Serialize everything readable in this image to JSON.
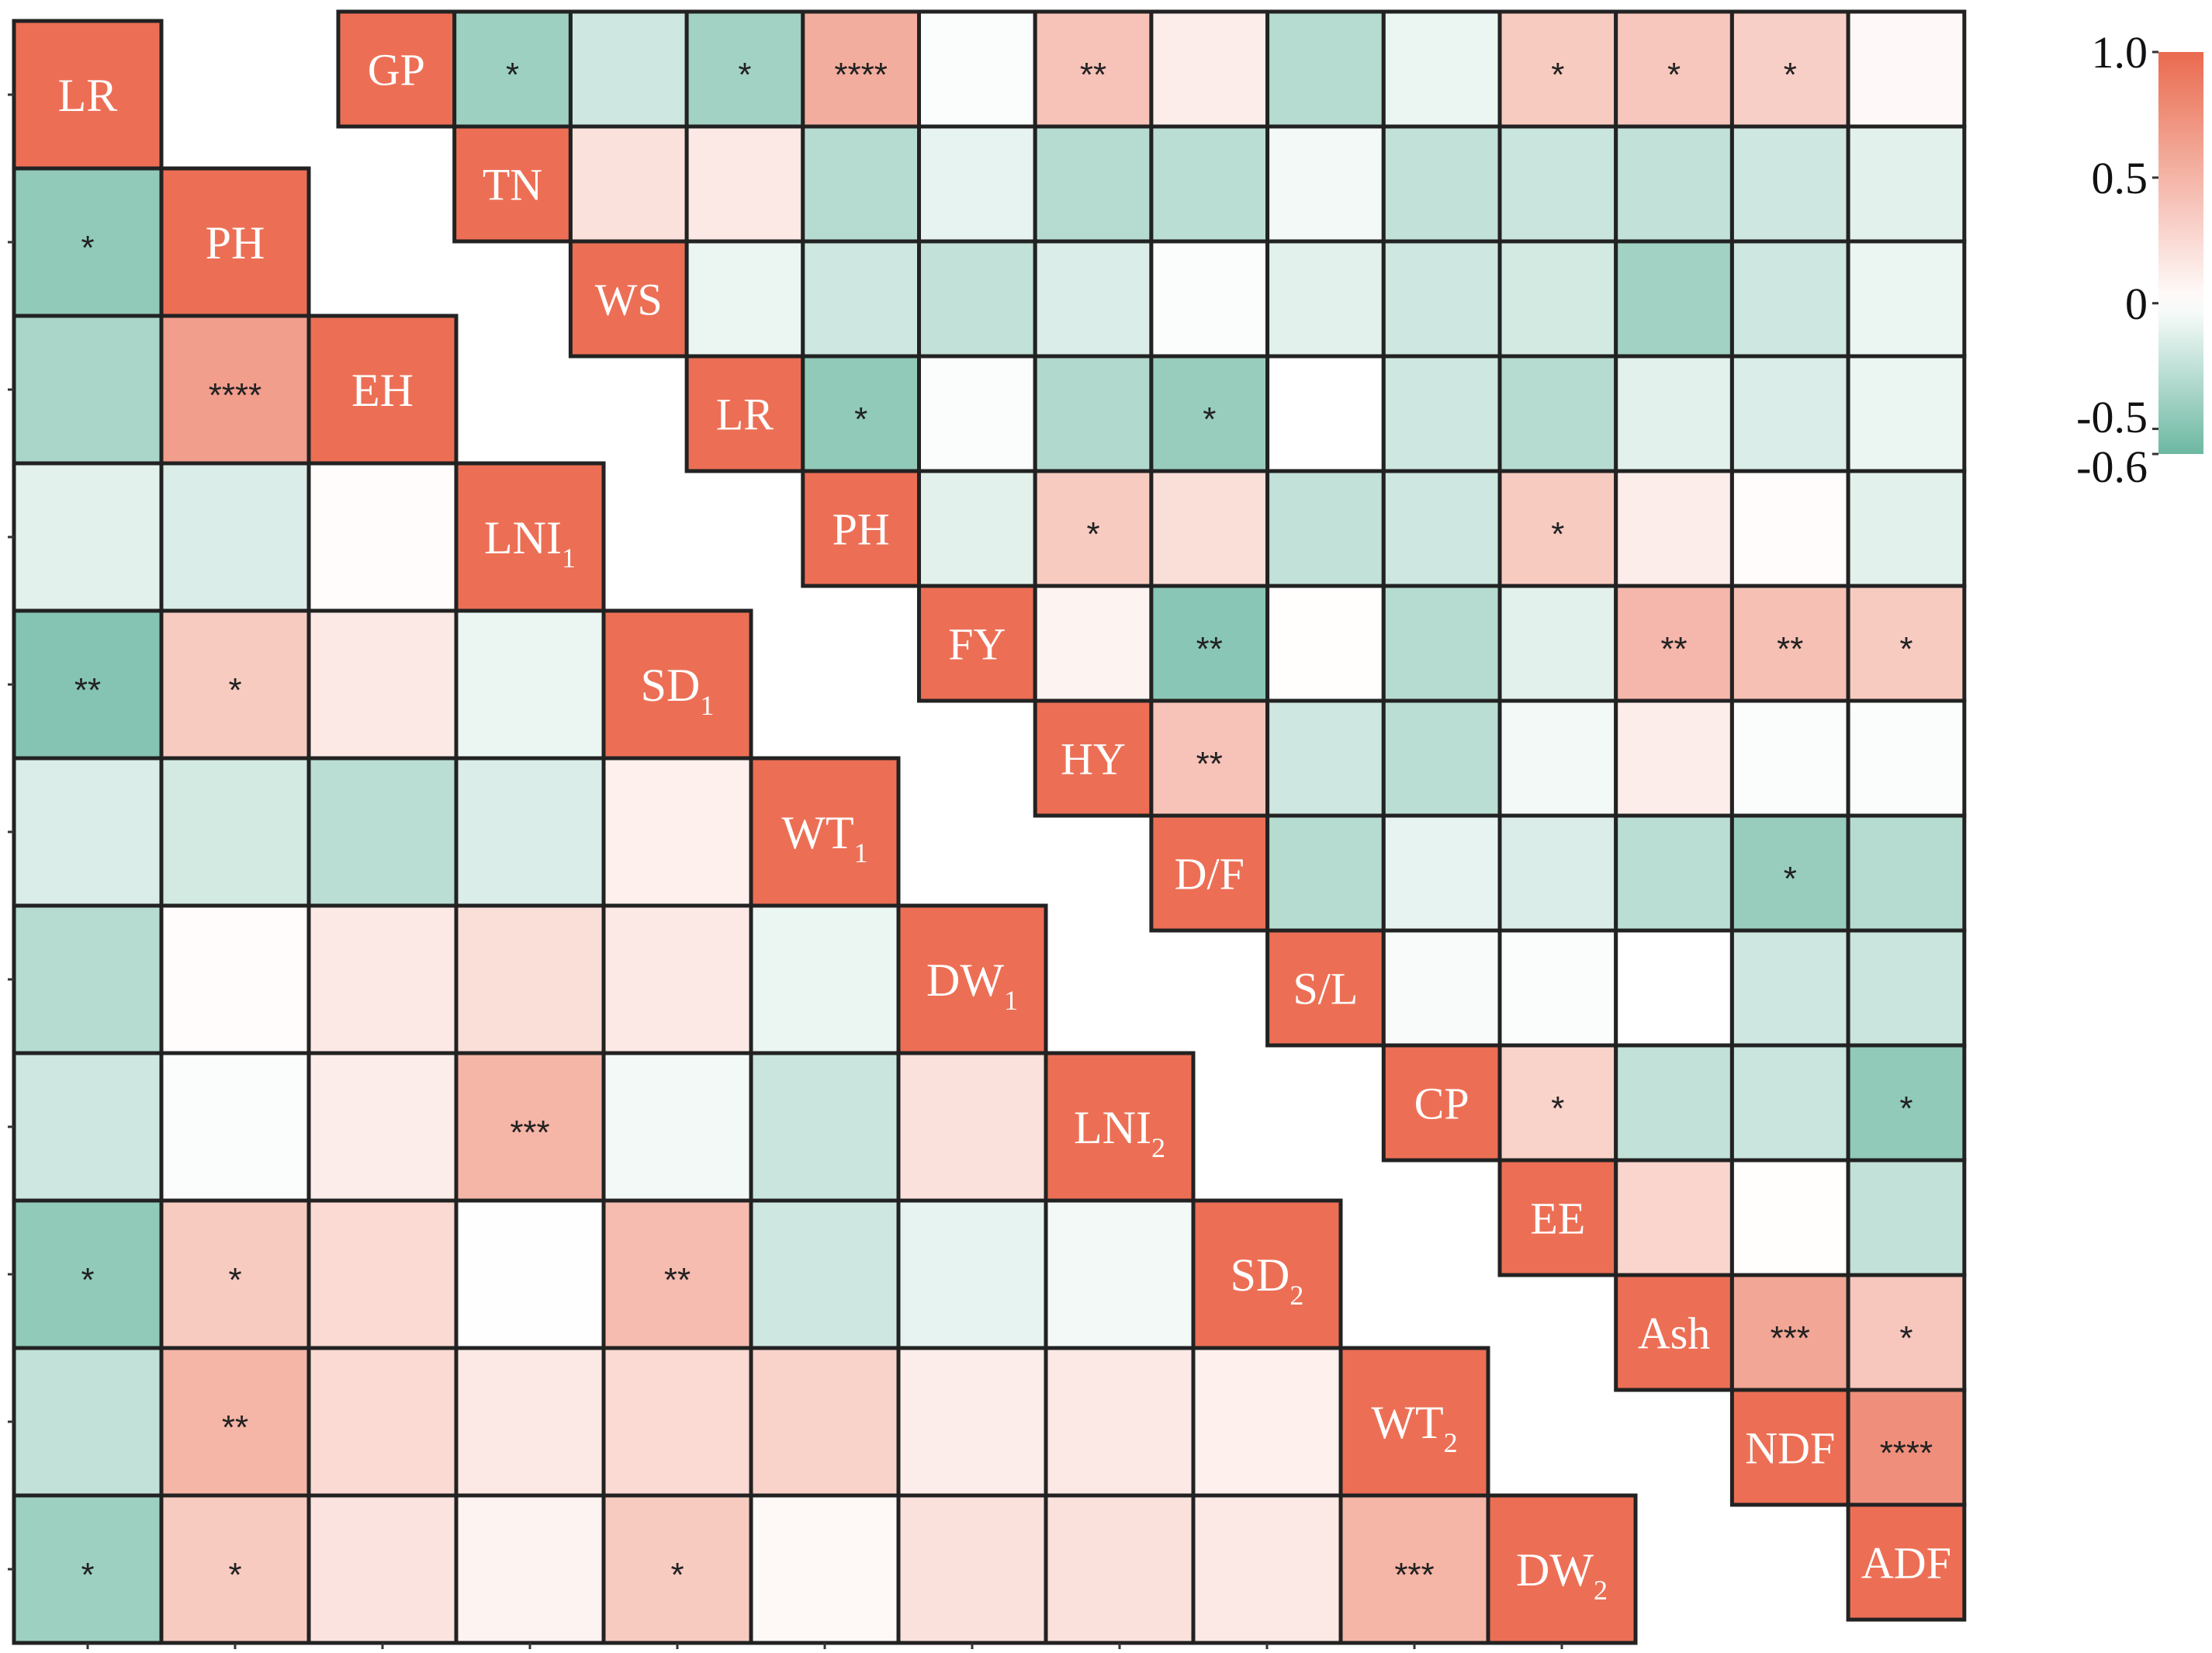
{
  "chart_data": [
    {
      "type": "heatmap",
      "name": "left-correlation-matrix",
      "triangle": "lower",
      "variables": [
        {
          "text": "LR",
          "sub": ""
        },
        {
          "text": "PH",
          "sub": ""
        },
        {
          "text": "EH",
          "sub": ""
        },
        {
          "text": "LNI",
          "sub": "1"
        },
        {
          "text": "SD",
          "sub": "1"
        },
        {
          "text": "WT",
          "sub": "1"
        },
        {
          "text": "DW",
          "sub": "1"
        },
        {
          "text": "LNI",
          "sub": "2"
        },
        {
          "text": "SD",
          "sub": "2"
        },
        {
          "text": "WT",
          "sub": "2"
        },
        {
          "text": "DW",
          "sub": "2"
        }
      ],
      "values": [
        [],
        [
          -0.45
        ],
        [
          -0.35,
          0.65
        ],
        [
          -0.12,
          -0.15,
          0.02
        ],
        [
          -0.5,
          0.35,
          0.15,
          -0.08
        ],
        [
          -0.15,
          -0.18,
          -0.28,
          -0.15,
          0.1
        ],
        [
          -0.3,
          0.02,
          0.15,
          0.22,
          0.15,
          -0.08
        ],
        [
          -0.2,
          -0.02,
          0.12,
          0.5,
          -0.05,
          -0.22,
          0.2
        ],
        [
          -0.45,
          0.35,
          0.25,
          -0.01,
          0.45,
          -0.2,
          -0.1,
          -0.05
        ],
        [
          -0.25,
          0.5,
          0.25,
          0.15,
          0.25,
          0.3,
          0.12,
          0.15,
          0.1
        ],
        [
          -0.4,
          0.35,
          0.18,
          0.08,
          0.35,
          0.05,
          0.2,
          0.2,
          0.15,
          0.5
        ]
      ],
      "significance": [
        [],
        [
          "*"
        ],
        [
          "",
          "****"
        ],
        [
          "",
          "",
          ""
        ],
        [
          "**",
          "*",
          "",
          ""
        ],
        [
          "",
          "",
          "",
          "",
          ""
        ],
        [
          "",
          "",
          "",
          "",
          "",
          ""
        ],
        [
          "",
          "",
          "",
          "***",
          "",
          "",
          ""
        ],
        [
          "*",
          "*",
          "",
          "",
          "**",
          "",
          "",
          ""
        ],
        [
          "",
          "**",
          "",
          "",
          "",
          "",
          "",
          "",
          ""
        ],
        [
          "*",
          "*",
          "",
          "",
          "*",
          "",
          "",
          "",
          "",
          "***"
        ]
      ]
    },
    {
      "type": "heatmap",
      "name": "right-correlation-matrix",
      "triangle": "upper",
      "variables": [
        {
          "text": "GP",
          "sub": ""
        },
        {
          "text": "TN",
          "sub": ""
        },
        {
          "text": "WS",
          "sub": ""
        },
        {
          "text": "LR",
          "sub": ""
        },
        {
          "text": "PH",
          "sub": ""
        },
        {
          "text": "FY",
          "sub": ""
        },
        {
          "text": "HY",
          "sub": ""
        },
        {
          "text": "D/F",
          "sub": ""
        },
        {
          "text": "S/L",
          "sub": ""
        },
        {
          "text": "CP",
          "sub": ""
        },
        {
          "text": "EE",
          "sub": ""
        },
        {
          "text": "Ash",
          "sub": ""
        },
        {
          "text": "NDF",
          "sub": ""
        },
        {
          "text": "ADF",
          "sub": ""
        }
      ],
      "values": [
        [
          -0.4,
          -0.2,
          -0.38,
          0.55,
          -0.02,
          0.4,
          0.12,
          -0.3,
          -0.08,
          0.35,
          0.38,
          0.32,
          0.04
        ],
        [
          0.2,
          0.15,
          -0.3,
          -0.1,
          -0.3,
          -0.28,
          -0.05,
          -0.25,
          -0.22,
          -0.25,
          -0.2,
          -0.12
        ],
        [
          -0.08,
          -0.2,
          -0.25,
          -0.15,
          -0.02,
          -0.12,
          -0.2,
          -0.18,
          -0.38,
          -0.2,
          -0.08
        ],
        [
          -0.45,
          -0.02,
          -0.32,
          -0.42,
          0.0,
          -0.2,
          -0.3,
          -0.12,
          -0.15,
          -0.08
        ],
        [
          -0.12,
          0.35,
          0.22,
          -0.25,
          -0.2,
          0.35,
          0.12,
          0.02,
          -0.12
        ],
        [
          0.08,
          -0.48,
          0.01,
          -0.3,
          -0.12,
          0.48,
          0.42,
          0.35
        ],
        [
          0.4,
          -0.2,
          -0.28,
          -0.05,
          0.12,
          -0.02,
          -0.02
        ],
        [
          -0.3,
          -0.1,
          -0.15,
          -0.28,
          -0.42,
          -0.3
        ],
        [
          -0.03,
          -0.02,
          0.0,
          -0.2,
          -0.22
        ],
        [
          0.3,
          -0.25,
          -0.22,
          -0.45
        ],
        [
          0.28,
          0.01,
          -0.25
        ],
        [
          0.6,
          0.38
        ],
        [
          0.75
        ],
        []
      ],
      "significance": [
        [
          "*",
          "",
          "*",
          "****",
          "",
          "**",
          "",
          "",
          "",
          "*",
          "*",
          "*",
          ""
        ],
        [
          "",
          "",
          "",
          "",
          "",
          "",
          "",
          "",
          "",
          "",
          "",
          ""
        ],
        [
          "",
          "",
          "",
          "",
          "",
          "",
          "",
          "",
          "",
          "",
          ""
        ],
        [
          "*",
          "",
          "",
          "*",
          "",
          "",
          "",
          "",
          "",
          ""
        ],
        [
          "",
          "*",
          "",
          "",
          "",
          "*",
          "",
          "",
          ""
        ],
        [
          "",
          "**",
          "",
          "",
          "",
          "**",
          "**",
          "*"
        ],
        [
          "**",
          "",
          "",
          "",
          "",
          "",
          ""
        ],
        [
          "",
          "",
          "",
          "",
          "*",
          ""
        ],
        [
          "",
          "",
          "",
          "",
          ""
        ],
        [
          "*",
          "",
          "",
          "*"
        ],
        [
          "",
          "",
          ""
        ],
        [
          "***",
          "*"
        ],
        [
          "****"
        ],
        []
      ]
    }
  ],
  "colorbar": {
    "range": [
      -0.6,
      1.0
    ],
    "ticks": [
      {
        "value": 1.0,
        "label": "1.0"
      },
      {
        "value": 0.5,
        "label": "0.5"
      },
      {
        "value": 0,
        "label": "0"
      },
      {
        "value": -0.5,
        "label": "-0.5"
      },
      {
        "value": -0.6,
        "label": "-0.6"
      }
    ],
    "colors": {
      "negative": "#6cb8a2",
      "zero": "#ffffff",
      "positive": "#ea6a4f"
    }
  },
  "styles": {
    "border": "#222222",
    "diagonal": "#ec6f55"
  }
}
